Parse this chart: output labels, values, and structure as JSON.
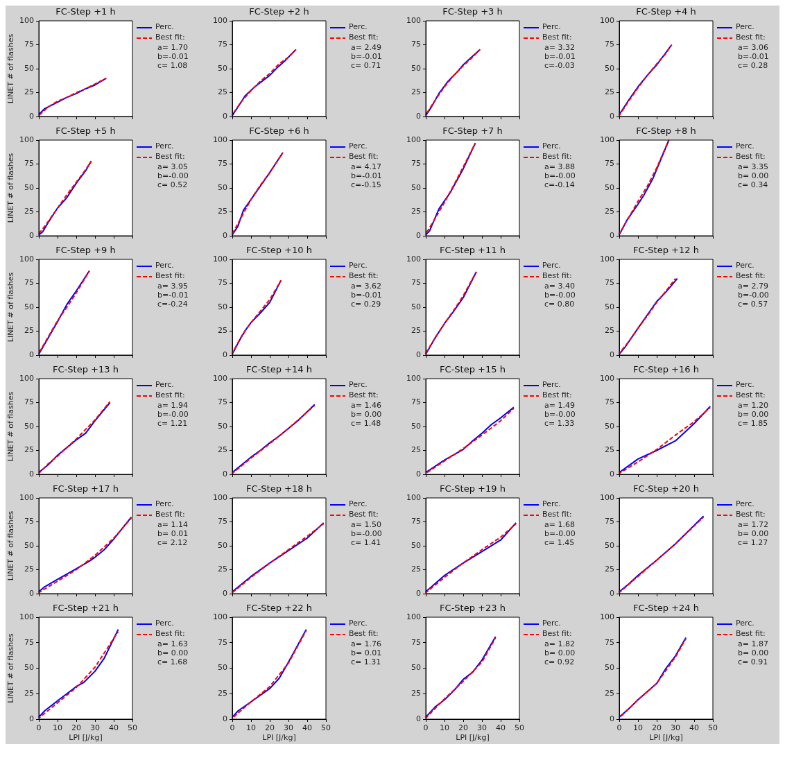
{
  "chart_data": [
    {
      "type": "line",
      "title": "FC-Step +1 h",
      "ylabel": "LINET # of flashes",
      "xlim": [
        0,
        50
      ],
      "xticks": [
        0,
        10,
        20,
        30,
        40,
        50
      ],
      "ylim": [
        0,
        100
      ],
      "yticks": [
        0,
        25,
        50,
        75,
        100
      ],
      "grid": false,
      "legend": "right",
      "tick_labels": "y",
      "annotations": [
        "a= 1.70",
        "b=-0.01",
        "c= 1.08"
      ],
      "series": [
        {
          "name": "Perc.",
          "color": "#0000ff",
          "x": [
            0,
            3,
            10,
            15,
            20,
            25,
            30,
            36
          ],
          "values": [
            2,
            8,
            15,
            20,
            24,
            29,
            33,
            40
          ]
        },
        {
          "name": "Best fit:",
          "color": "#ff0000",
          "line_style": "dashed",
          "x": [
            0,
            5,
            10,
            15,
            20,
            25,
            30,
            36
          ],
          "values": [
            1,
            10,
            16,
            20,
            25,
            29,
            34,
            40
          ]
        }
      ]
    },
    {
      "type": "line",
      "title": "FC-Step +2 h",
      "xlim": [
        0,
        50
      ],
      "xticks": [
        0,
        10,
        20,
        30,
        40,
        50
      ],
      "ylim": [
        0,
        100
      ],
      "yticks": [
        0,
        25,
        50,
        75,
        100
      ],
      "grid": false,
      "legend": "right",
      "tick_labels": "y",
      "annotations": [
        "a= 2.49",
        "b=-0.01",
        "c= 0.71"
      ],
      "series": [
        {
          "name": "Perc.",
          "color": "#0000ff",
          "x": [
            0,
            3,
            7,
            12,
            20,
            24,
            28,
            34
          ],
          "values": [
            1,
            10,
            22,
            31,
            43,
            51,
            58,
            70
          ]
        },
        {
          "name": "Best fit:",
          "color": "#ff0000",
          "line_style": "dashed",
          "x": [
            0,
            5,
            10,
            15,
            20,
            25,
            30,
            34
          ],
          "values": [
            2,
            16,
            27,
            37,
            45,
            55,
            62,
            70
          ]
        }
      ]
    },
    {
      "type": "line",
      "title": "FC-Step +3 h",
      "xlim": [
        0,
        50
      ],
      "xticks": [
        0,
        10,
        20,
        30,
        40,
        50
      ],
      "ylim": [
        0,
        100
      ],
      "yticks": [
        0,
        25,
        50,
        75,
        100
      ],
      "grid": false,
      "legend": "right",
      "tick_labels": "y",
      "annotations": [
        "a= 3.32",
        "b=-0.01",
        "c=-0.03"
      ],
      "series": [
        {
          "name": "Perc.",
          "color": "#0000ff",
          "x": [
            0,
            3,
            7,
            12,
            17,
            20,
            25,
            29
          ],
          "values": [
            1,
            10,
            24,
            37,
            47,
            54,
            63,
            70
          ]
        },
        {
          "name": "Best fit:",
          "color": "#ff0000",
          "line_style": "dashed",
          "x": [
            0,
            5,
            10,
            15,
            20,
            25,
            29
          ],
          "values": [
            2,
            17,
            31,
            43,
            53,
            62,
            70
          ]
        }
      ]
    },
    {
      "type": "line",
      "title": "FC-Step +4 h",
      "xlim": [
        0,
        50
      ],
      "xticks": [
        0,
        10,
        20,
        30,
        40,
        50
      ],
      "ylim": [
        0,
        100
      ],
      "yticks": [
        0,
        25,
        50,
        75,
        100
      ],
      "grid": false,
      "legend": "right",
      "tick_labels": "y",
      "annotations": [
        "a= 3.06",
        "b=-0.01",
        "c= 0.28"
      ],
      "series": [
        {
          "name": "Perc.",
          "color": "#0000ff",
          "x": [
            0,
            5,
            10,
            15,
            20,
            25,
            28
          ],
          "values": [
            2,
            17,
            31,
            43,
            54,
            67,
            75
          ]
        },
        {
          "name": "Best fit:",
          "color": "#ff0000",
          "line_style": "dashed",
          "x": [
            0,
            5,
            10,
            15,
            20,
            25,
            28
          ],
          "values": [
            1,
            16,
            30,
            43,
            55,
            66,
            75
          ]
        }
      ]
    },
    {
      "type": "line",
      "title": "FC-Step +5 h",
      "ylabel": "LINET # of flashes",
      "xlim": [
        0,
        50
      ],
      "xticks": [
        0,
        10,
        20,
        30,
        40,
        50
      ],
      "ylim": [
        0,
        100
      ],
      "yticks": [
        0,
        25,
        50,
        75,
        100
      ],
      "grid": false,
      "legend": "right",
      "tick_labels": "y",
      "annotations": [
        "a= 3.05",
        "b=-0.00",
        "c= 0.52"
      ],
      "series": [
        {
          "name": "Perc.",
          "color": "#0000ff",
          "x": [
            0,
            2,
            5,
            10,
            15,
            20,
            25,
            28
          ],
          "values": [
            1,
            4,
            14,
            29,
            40,
            55,
            68,
            78
          ]
        },
        {
          "name": "Best fit:",
          "color": "#ff0000",
          "line_style": "dashed",
          "x": [
            0,
            5,
            10,
            15,
            20,
            25,
            28
          ],
          "values": [
            2,
            15,
            29,
            43,
            56,
            69,
            78
          ]
        }
      ]
    },
    {
      "type": "line",
      "title": "FC-Step +6 h",
      "xlim": [
        0,
        50
      ],
      "xticks": [
        0,
        10,
        20,
        30,
        40,
        50
      ],
      "ylim": [
        0,
        100
      ],
      "yticks": [
        0,
        25,
        50,
        75,
        100
      ],
      "grid": false,
      "legend": "right",
      "tick_labels": "y",
      "annotations": [
        "a= 4.17",
        "b=-0.01",
        "c=-0.15"
      ],
      "series": [
        {
          "name": "Perc.",
          "color": "#0000ff",
          "x": [
            0,
            3,
            6,
            10,
            15,
            20,
            27
          ],
          "values": [
            1,
            10,
            27,
            38,
            52,
            66,
            87
          ]
        },
        {
          "name": "Best fit:",
          "color": "#ff0000",
          "line_style": "dashed",
          "x": [
            0,
            5,
            10,
            15,
            20,
            27
          ],
          "values": [
            2,
            20,
            38,
            53,
            66,
            87
          ]
        }
      ]
    },
    {
      "type": "line",
      "title": "FC-Step +7 h",
      "xlim": [
        0,
        50
      ],
      "xticks": [
        0,
        10,
        20,
        30,
        40,
        50
      ],
      "ylim": [
        0,
        100
      ],
      "yticks": [
        0,
        25,
        50,
        75,
        100
      ],
      "grid": false,
      "legend": "right",
      "tick_labels": "y",
      "annotations": [
        "a= 3.88",
        "b=-0.00",
        "c=-0.14"
      ],
      "series": [
        {
          "name": "Perc.",
          "color": "#0000ff",
          "x": [
            0,
            2,
            7,
            13,
            20,
            26.5
          ],
          "values": [
            1,
            5,
            28,
            45,
            70,
            97
          ]
        },
        {
          "name": "Best fit:",
          "color": "#ff0000",
          "line_style": "dashed",
          "x": [
            0,
            5,
            10,
            15,
            20,
            26.5
          ],
          "values": [
            2,
            18,
            35,
            53,
            72,
            97
          ]
        }
      ]
    },
    {
      "type": "line",
      "title": "FC-Step +8 h",
      "xlim": [
        0,
        50
      ],
      "xticks": [
        0,
        10,
        20,
        30,
        40,
        50
      ],
      "ylim": [
        0,
        100
      ],
      "yticks": [
        0,
        25,
        50,
        75,
        100
      ],
      "grid": false,
      "legend": "right",
      "tick_labels": "y",
      "annotations": [
        "a= 3.35",
        "b= 0.00",
        "c= 0.34"
      ],
      "series": [
        {
          "name": "Perc.",
          "color": "#0000ff",
          "x": [
            0,
            4,
            10,
            13,
            18,
            26.5
          ],
          "values": [
            1,
            16,
            33,
            42,
            60,
            100
          ]
        },
        {
          "name": "Best fit:",
          "color": "#ff0000",
          "line_style": "dashed",
          "x": [
            0,
            5,
            10,
            15,
            20,
            26.5
          ],
          "values": [
            2,
            19,
            36,
            52,
            71,
            100
          ]
        }
      ]
    },
    {
      "type": "line",
      "title": "FC-Step +9 h",
      "ylabel": "LINET # of flashes",
      "xlim": [
        0,
        50
      ],
      "xticks": [
        0,
        10,
        20,
        30,
        40,
        50
      ],
      "ylim": [
        0,
        100
      ],
      "yticks": [
        0,
        25,
        50,
        75,
        100
      ],
      "grid": false,
      "legend": "right",
      "tick_labels": "y",
      "annotations": [
        "a= 3.95",
        "b=-0.01",
        "c=-0.24"
      ],
      "series": [
        {
          "name": "Perc.",
          "color": "#0000ff",
          "x": [
            0,
            5,
            10,
            15,
            20,
            27
          ],
          "values": [
            1,
            18,
            35,
            53,
            67,
            88
          ]
        },
        {
          "name": "Best fit:",
          "color": "#ff0000",
          "line_style": "dashed",
          "x": [
            0,
            5,
            10,
            15,
            20,
            27
          ],
          "values": [
            2,
            19,
            36,
            50,
            65,
            88
          ]
        }
      ]
    },
    {
      "type": "line",
      "title": "FC-Step +10 h",
      "xlim": [
        0,
        50
      ],
      "xticks": [
        0,
        10,
        20,
        30,
        40,
        50
      ],
      "ylim": [
        0,
        100
      ],
      "yticks": [
        0,
        25,
        50,
        75,
        100
      ],
      "grid": false,
      "legend": "right",
      "tick_labels": "y",
      "annotations": [
        "a= 3.62",
        "b=-0.01",
        "c= 0.29"
      ],
      "series": [
        {
          "name": "Perc.",
          "color": "#0000ff",
          "x": [
            0,
            4,
            7,
            10,
            15,
            20,
            26
          ],
          "values": [
            1,
            16,
            26,
            34,
            44,
            55,
            78
          ]
        },
        {
          "name": "Best fit:",
          "color": "#ff0000",
          "line_style": "dashed",
          "x": [
            0,
            5,
            10,
            15,
            20,
            26
          ],
          "values": [
            2,
            20,
            34,
            46,
            58,
            78
          ]
        }
      ]
    },
    {
      "type": "line",
      "title": "FC-Step +11 h",
      "xlim": [
        0,
        50
      ],
      "xticks": [
        0,
        10,
        20,
        30,
        40,
        50
      ],
      "ylim": [
        0,
        100
      ],
      "yticks": [
        0,
        25,
        50,
        75,
        100
      ],
      "grid": false,
      "legend": "right",
      "tick_labels": "y",
      "annotations": [
        "a= 3.40",
        "b=-0.00",
        "c= 0.80"
      ],
      "series": [
        {
          "name": "Perc.",
          "color": "#0000ff",
          "x": [
            0,
            5,
            10,
            15,
            20,
            27
          ],
          "values": [
            1,
            18,
            33,
            46,
            60,
            87
          ]
        },
        {
          "name": "Best fit:",
          "color": "#ff0000",
          "line_style": "dashed",
          "x": [
            0,
            5,
            10,
            15,
            20,
            27
          ],
          "values": [
            2,
            18,
            33,
            47,
            62,
            87
          ]
        }
      ]
    },
    {
      "type": "line",
      "title": "FC-Step +12 h",
      "xlim": [
        0,
        50
      ],
      "xticks": [
        0,
        10,
        20,
        30,
        40,
        50
      ],
      "ylim": [
        0,
        100
      ],
      "yticks": [
        0,
        25,
        50,
        75,
        100
      ],
      "grid": false,
      "legend": "right",
      "tick_labels": "y",
      "annotations": [
        "a= 2.79",
        "b=-0.00",
        "c= 0.57"
      ],
      "series": [
        {
          "name": "Perc.",
          "color": "#0000ff",
          "x": [
            0,
            3,
            10,
            15,
            20,
            25,
            31
          ],
          "values": [
            1,
            8,
            28,
            42,
            56,
            66,
            80
          ]
        },
        {
          "name": "Best fit:",
          "color": "#ff0000",
          "line_style": "dashed",
          "x": [
            0,
            5,
            10,
            15,
            20,
            25,
            30
          ],
          "values": [
            2,
            14,
            28,
            41,
            55,
            67,
            80
          ]
        }
      ]
    },
    {
      "type": "line",
      "title": "FC-Step +13 h",
      "ylabel": "LINET # of flashes",
      "xlim": [
        0,
        50
      ],
      "xticks": [
        0,
        10,
        20,
        30,
        40,
        50
      ],
      "ylim": [
        0,
        100
      ],
      "yticks": [
        0,
        25,
        50,
        75,
        100
      ],
      "grid": false,
      "legend": "right",
      "tick_labels": "y",
      "annotations": [
        "a= 1.94",
        "b=-0.00",
        "c= 1.21"
      ],
      "series": [
        {
          "name": "Perc.",
          "color": "#0000ff",
          "x": [
            0,
            5,
            10,
            15,
            20,
            25,
            30,
            38
          ],
          "values": [
            2,
            10,
            20,
            28,
            36,
            43,
            56,
            75
          ]
        },
        {
          "name": "Best fit:",
          "color": "#ff0000",
          "line_style": "dashed",
          "x": [
            0,
            5,
            10,
            15,
            20,
            25,
            30,
            38
          ],
          "values": [
            1,
            11,
            19,
            28,
            37,
            47,
            57,
            76
          ]
        }
      ]
    },
    {
      "type": "line",
      "title": "FC-Step +14 h",
      "xlim": [
        0,
        50
      ],
      "xticks": [
        0,
        10,
        20,
        30,
        40,
        50
      ],
      "ylim": [
        0,
        100
      ],
      "yticks": [
        0,
        25,
        50,
        75,
        100
      ],
      "grid": false,
      "legend": "right",
      "tick_labels": "y",
      "annotations": [
        "a= 1.46",
        "b= 0.00",
        "c= 1.48"
      ],
      "series": [
        {
          "name": "Perc.",
          "color": "#0000ff",
          "x": [
            0,
            5,
            10,
            15,
            20,
            25,
            30,
            35,
            44
          ],
          "values": [
            2,
            10,
            18,
            25,
            33,
            40,
            48,
            56,
            73
          ]
        },
        {
          "name": "Best fit:",
          "color": "#ff0000",
          "line_style": "dashed",
          "x": [
            0,
            10,
            20,
            30,
            44
          ],
          "values": [
            1,
            17,
            32,
            48,
            72
          ]
        }
      ]
    },
    {
      "type": "line",
      "title": "FC-Step +15 h",
      "xlim": [
        0,
        50
      ],
      "xticks": [
        0,
        10,
        20,
        30,
        40,
        50
      ],
      "ylim": [
        0,
        100
      ],
      "yticks": [
        0,
        25,
        50,
        75,
        100
      ],
      "grid": false,
      "legend": "right",
      "tick_labels": "y",
      "annotations": [
        "a= 1.49",
        "b=-0.00",
        "c= 1.33"
      ],
      "series": [
        {
          "name": "Perc.",
          "color": "#0000ff",
          "x": [
            0,
            10,
            20,
            25,
            30,
            35,
            40,
            47
          ],
          "values": [
            2,
            15,
            26,
            35,
            43,
            52,
            59,
            70
          ]
        },
        {
          "name": "Best fit:",
          "color": "#ff0000",
          "line_style": "dashed",
          "x": [
            0,
            10,
            20,
            30,
            40,
            47
          ],
          "values": [
            1,
            14,
            27,
            41,
            56,
            69
          ]
        }
      ]
    },
    {
      "type": "line",
      "title": "FC-Step +16 h",
      "xlim": [
        0,
        50
      ],
      "xticks": [
        0,
        10,
        20,
        30,
        40,
        50
      ],
      "ylim": [
        0,
        100
      ],
      "yticks": [
        0,
        25,
        50,
        75,
        100
      ],
      "grid": false,
      "legend": "right",
      "tick_labels": "y",
      "annotations": [
        "a= 1.20",
        "b= 0.00",
        "c= 1.85"
      ],
      "series": [
        {
          "name": "Perc.",
          "color": "#0000ff",
          "x": [
            0,
            5,
            10,
            20,
            30,
            40,
            48.6
          ],
          "values": [
            2,
            9,
            16,
            25,
            35,
            53,
            71
          ]
        },
        {
          "name": "Best fit:",
          "color": "#ff0000",
          "line_style": "dashed",
          "x": [
            0,
            10,
            20,
            30,
            40,
            48.6
          ],
          "values": [
            1,
            13,
            26,
            41,
            55,
            70
          ]
        }
      ]
    },
    {
      "type": "line",
      "title": "FC-Step +17 h",
      "ylabel": "LINET # of flashes",
      "xlim": [
        0,
        50
      ],
      "xticks": [
        0,
        10,
        20,
        30,
        40,
        50
      ],
      "ylim": [
        0,
        100
      ],
      "yticks": [
        0,
        25,
        50,
        75,
        100
      ],
      "grid": false,
      "legend": "right",
      "tick_labels": "y",
      "annotations": [
        "a= 1.14",
        "b= 0.01",
        "c= 2.12"
      ],
      "series": [
        {
          "name": "Perc.",
          "color": "#0000ff",
          "x": [
            0,
            3,
            10,
            20,
            27,
            30,
            35,
            40,
            49.4
          ],
          "values": [
            2,
            7,
            15,
            26,
            34,
            38,
            46,
            57,
            80
          ]
        },
        {
          "name": "Best fit:",
          "color": "#ff0000",
          "line_style": "dashed",
          "x": [
            0,
            10,
            20,
            30,
            40,
            49.4
          ],
          "values": [
            1,
            13,
            25,
            40,
            58,
            79
          ]
        }
      ]
    },
    {
      "type": "line",
      "title": "FC-Step +18 h",
      "xlim": [
        0,
        50
      ],
      "xticks": [
        0,
        10,
        20,
        30,
        40,
        50
      ],
      "ylim": [
        0,
        100
      ],
      "yticks": [
        0,
        25,
        50,
        75,
        100
      ],
      "grid": false,
      "legend": "right",
      "tick_labels": "y",
      "annotations": [
        "a= 1.50",
        "b=-0.00",
        "c= 1.41"
      ],
      "series": [
        {
          "name": "Perc.",
          "color": "#0000ff",
          "x": [
            0,
            10,
            20,
            30,
            40,
            48.8
          ],
          "values": [
            2,
            18,
            32,
            45,
            58,
            74
          ]
        },
        {
          "name": "Best fit:",
          "color": "#ff0000",
          "line_style": "dashed",
          "x": [
            0,
            10,
            20,
            30,
            40,
            48.8
          ],
          "values": [
            1,
            17,
            32,
            46,
            60,
            73
          ]
        }
      ]
    },
    {
      "type": "line",
      "title": "FC-Step +19 h",
      "xlim": [
        0,
        50
      ],
      "xticks": [
        0,
        10,
        20,
        30,
        40,
        50
      ],
      "ylim": [
        0,
        100
      ],
      "yticks": [
        0,
        25,
        50,
        75,
        100
      ],
      "grid": false,
      "legend": "right",
      "tick_labels": "y",
      "annotations": [
        "a= 1.68",
        "b=-0.00",
        "c= 1.45"
      ],
      "series": [
        {
          "name": "Perc.",
          "color": "#0000ff",
          "x": [
            0,
            3,
            10,
            20,
            30,
            40,
            48.2
          ],
          "values": [
            2,
            7,
            19,
            32,
            44,
            56,
            74
          ]
        },
        {
          "name": "Best fit:",
          "color": "#ff0000",
          "line_style": "dashed",
          "x": [
            0,
            10,
            20,
            30,
            40,
            48.2
          ],
          "values": [
            1,
            17,
            32,
            46,
            59,
            73
          ]
        }
      ]
    },
    {
      "type": "line",
      "title": "FC-Step +20 h",
      "xlim": [
        0,
        50
      ],
      "xticks": [
        0,
        10,
        20,
        30,
        40,
        50
      ],
      "ylim": [
        0,
        100
      ],
      "yticks": [
        0,
        25,
        50,
        75,
        100
      ],
      "grid": false,
      "legend": "right",
      "tick_labels": "y",
      "annotations": [
        "a= 1.72",
        "b= 0.00",
        "c= 1.27"
      ],
      "series": [
        {
          "name": "Perc.",
          "color": "#0000ff",
          "x": [
            0,
            5,
            10,
            20,
            30,
            45
          ],
          "values": [
            2,
            10,
            19,
            35,
            52,
            81
          ]
        },
        {
          "name": "Best fit:",
          "color": "#ff0000",
          "line_style": "dashed",
          "x": [
            0,
            10,
            20,
            30,
            45
          ],
          "values": [
            1,
            18,
            35,
            52,
            80
          ]
        }
      ]
    },
    {
      "type": "line",
      "title": "FC-Step +21 h",
      "xlabel": "LPI [J/kg]",
      "ylabel": "LINET # of flashes",
      "xlim": [
        0,
        50
      ],
      "xticks": [
        0,
        10,
        20,
        30,
        40,
        50
      ],
      "ylim": [
        0,
        100
      ],
      "yticks": [
        0,
        25,
        50,
        75,
        100
      ],
      "grid": false,
      "legend": "right",
      "annotations": [
        "a= 1.63",
        "b= 0.00",
        "c= 1.68"
      ],
      "series": [
        {
          "name": "Perc.",
          "color": "#0000ff",
          "x": [
            0,
            3,
            10,
            15,
            20,
            24,
            30,
            35,
            42.4
          ],
          "values": [
            2,
            8,
            18,
            25,
            32,
            36,
            47,
            60,
            88
          ]
        },
        {
          "name": "Best fit:",
          "color": "#ff0000",
          "line_style": "dashed",
          "x": [
            0,
            10,
            20,
            30,
            42.4
          ],
          "values": [
            1,
            16,
            31,
            51,
            86
          ]
        }
      ]
    },
    {
      "type": "line",
      "title": "FC-Step +22 h",
      "xlabel": "LPI [J/kg]",
      "xlim": [
        0,
        50
      ],
      "xticks": [
        0,
        10,
        20,
        30,
        40,
        50
      ],
      "ylim": [
        0,
        100
      ],
      "yticks": [
        0,
        25,
        50,
        75,
        100
      ],
      "grid": false,
      "legend": "right",
      "annotations": [
        "a= 1.76",
        "b= 0.01",
        "c= 1.31"
      ],
      "series": [
        {
          "name": "Perc.",
          "color": "#0000ff",
          "x": [
            0,
            3,
            10,
            20,
            25,
            30,
            39.5
          ],
          "values": [
            2,
            8,
            17,
            30,
            40,
            56,
            88
          ]
        },
        {
          "name": "Best fit:",
          "color": "#ff0000",
          "line_style": "dashed",
          "x": [
            0,
            10,
            20,
            30,
            39.5
          ],
          "values": [
            1,
            17,
            32,
            55,
            87
          ]
        }
      ]
    },
    {
      "type": "line",
      "title": "FC-Step +23 h",
      "xlabel": "LPI [J/kg]",
      "xlim": [
        0,
        50
      ],
      "xticks": [
        0,
        10,
        20,
        30,
        40,
        50
      ],
      "ylim": [
        0,
        100
      ],
      "yticks": [
        0,
        25,
        50,
        75,
        100
      ],
      "grid": false,
      "legend": "right",
      "annotations": [
        "a= 1.82",
        "b= 0.00",
        "c= 0.92"
      ],
      "series": [
        {
          "name": "Perc.",
          "color": "#0000ff",
          "x": [
            0,
            5,
            10,
            15,
            20,
            25,
            30,
            37.3
          ],
          "values": [
            2,
            12,
            19,
            28,
            39,
            46,
            58,
            81
          ]
        },
        {
          "name": "Best fit:",
          "color": "#ff0000",
          "line_style": "dashed",
          "x": [
            0,
            10,
            20,
            30,
            37.3
          ],
          "values": [
            1,
            20,
            37,
            56,
            80
          ]
        }
      ]
    },
    {
      "type": "line",
      "title": "FC-Step +24 h",
      "xlabel": "LPI [J/kg]",
      "xlim": [
        0,
        50
      ],
      "xticks": [
        0,
        10,
        20,
        30,
        40,
        50
      ],
      "ylim": [
        0,
        100
      ],
      "yticks": [
        0,
        25,
        50,
        75,
        100
      ],
      "grid": false,
      "legend": "right",
      "annotations": [
        "a= 1.87",
        "b= 0.00",
        "c= 0.91"
      ],
      "series": [
        {
          "name": "Perc.",
          "color": "#0000ff",
          "x": [
            0,
            5,
            10,
            15,
            20,
            25,
            30,
            35.6
          ],
          "values": [
            2,
            10,
            19,
            27,
            35,
            50,
            62,
            80
          ]
        },
        {
          "name": "Best fit:",
          "color": "#ff0000",
          "line_style": "dashed",
          "x": [
            0,
            10,
            20,
            25,
            30,
            35.6
          ],
          "values": [
            1,
            19,
            35,
            48,
            61,
            79
          ]
        }
      ]
    }
  ]
}
